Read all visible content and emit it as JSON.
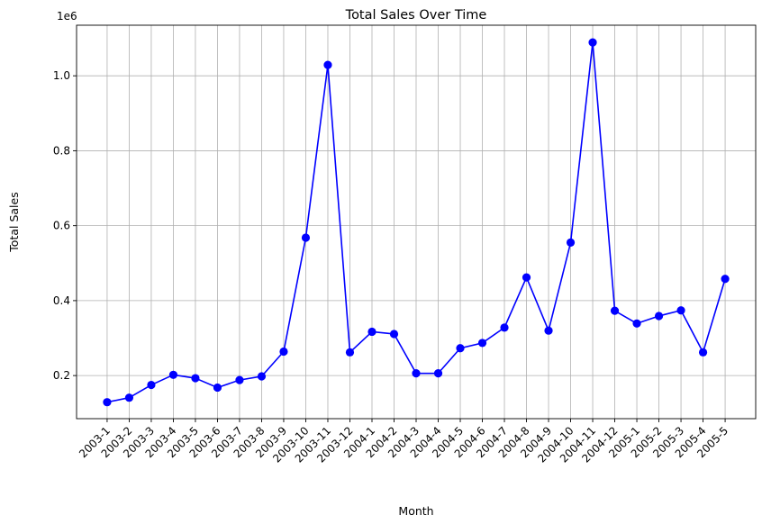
{
  "chart_data": {
    "type": "line",
    "title": "Total Sales Over Time",
    "xlabel": "Month",
    "ylabel": "Total Sales",
    "y_offset_label": "1e6",
    "y_scale": 1000000,
    "ylim": [
      0.085,
      1.135
    ],
    "y_ticks": [
      0.2,
      0.4,
      0.6,
      0.8,
      1.0
    ],
    "y_tick_labels": [
      "0.2",
      "0.4",
      "0.6",
      "0.8",
      "1.0"
    ],
    "grid": true,
    "line_color": "#0000ff",
    "marker": "circle",
    "categories": [
      "2003-1",
      "2003-2",
      "2003-3",
      "2003-4",
      "2003-5",
      "2003-6",
      "2003-7",
      "2003-8",
      "2003-9",
      "2003-10",
      "2003-11",
      "2003-12",
      "2004-1",
      "2004-2",
      "2004-3",
      "2004-4",
      "2004-5",
      "2004-6",
      "2004-7",
      "2004-8",
      "2004-9",
      "2004-10",
      "2004-11",
      "2004-12",
      "2005-1",
      "2005-2",
      "2005-3",
      "2005-4",
      "2005-5"
    ],
    "series": [
      {
        "values": [
          0.129,
          0.141,
          0.175,
          0.202,
          0.193,
          0.168,
          0.188,
          0.198,
          0.264,
          0.568,
          1.029,
          0.262,
          0.317,
          0.311,
          0.206,
          0.206,
          0.273,
          0.287,
          0.328,
          0.462,
          0.32,
          0.555,
          1.089,
          0.373,
          0.339,
          0.359,
          0.374,
          0.262,
          0.458
        ]
      }
    ]
  }
}
